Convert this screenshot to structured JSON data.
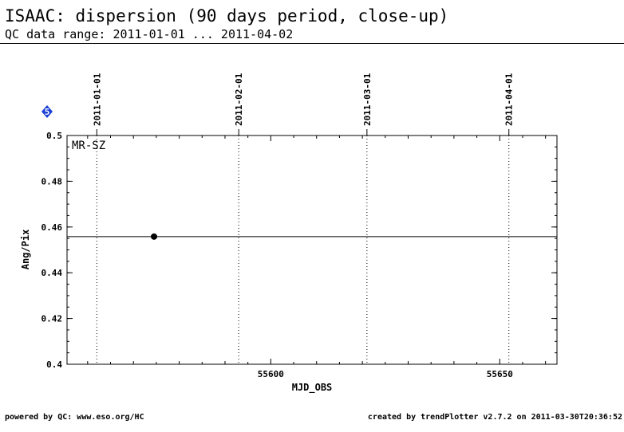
{
  "header": {
    "title": "ISAAC: dispersion (90 days period, close-up)",
    "subtitle": "QC data range: 2011-01-01 ... 2011-04-02"
  },
  "footer": {
    "left": "powered by QC: www.eso.org/HC",
    "right": "created by trendPlotter v2.7.2 on 2011-03-30T20:36:52"
  },
  "badge": {
    "label": "5",
    "color": "#1a3fd6"
  },
  "chart_data": {
    "type": "scatter",
    "title": "ISAAC: dispersion (90 days period, close-up)",
    "xlabel": "MJD_OBS",
    "ylabel": "Ang/Pix",
    "xlim": [
      55555.5,
      55662.5
    ],
    "ylim": [
      0.4,
      0.5
    ],
    "x_ticks": [
      55600,
      55650
    ],
    "y_ticks": [
      0.4,
      0.42,
      0.44,
      0.46,
      0.48,
      0.5
    ],
    "y_tick_labels": [
      "0.4",
      "0.42",
      "0.44",
      "0.46",
      "0.48",
      "0.5"
    ],
    "annotation": "MR-SZ",
    "reference_line": 0.4558,
    "date_markers": [
      {
        "label": "2011-01-01",
        "mjd": 55562
      },
      {
        "label": "2011-02-01",
        "mjd": 55593
      },
      {
        "label": "2011-03-01",
        "mjd": 55621
      },
      {
        "label": "2011-04-01",
        "mjd": 55652
      }
    ],
    "series": [
      {
        "points": [
          {
            "x": 55574.5,
            "y": 0.4558
          }
        ]
      }
    ],
    "grid": false
  }
}
